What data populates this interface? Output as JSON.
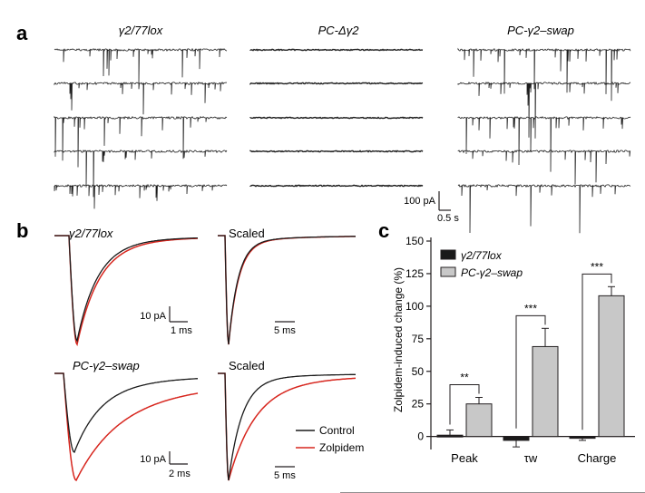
{
  "panel_a": {
    "label": "a",
    "titles": [
      "γ2/77lox",
      "PC-Δγ2",
      "PC-γ2–swap"
    ],
    "scale_current": "100 pA",
    "scale_time": "0.5 s"
  },
  "panel_b": {
    "label": "b",
    "top_title": "γ2/77lox",
    "bottom_title": "PC-γ2–swap",
    "scaled_label": "Scaled",
    "scale_top_amp": "10 pA",
    "scale_top_time": "1 ms",
    "scale_top_right_time": "5 ms",
    "scale_bottom_amp": "10 pA",
    "scale_bottom_time": "2 ms",
    "scale_bottom_right_time": "5 ms",
    "legend": [
      {
        "name": "Control",
        "color": "#1a1a1a"
      },
      {
        "name": "Zolpidem",
        "color": "#d7261e"
      }
    ]
  },
  "chart_data": {
    "type": "bar",
    "panel_label": "c",
    "categories": [
      "Peak",
      "τw",
      "Charge"
    ],
    "series": [
      {
        "name": "γ2/77lox",
        "color": "#1a1a1a",
        "values": [
          1,
          -3,
          -1
        ],
        "errors": [
          4,
          5,
          2
        ]
      },
      {
        "name": "PC-γ2–swap",
        "color": "#c8c8c8",
        "values": [
          25,
          69,
          108
        ],
        "errors": [
          5,
          14,
          7
        ]
      }
    ],
    "significance": [
      "**",
      "***",
      "***"
    ],
    "ylabel": "Zolpidem-induced change (%)",
    "ylim": [
      -10,
      150
    ],
    "yticks": [
      "0",
      "25",
      "50",
      "75",
      "100",
      "125",
      "150"
    ],
    "xlabel": ""
  }
}
